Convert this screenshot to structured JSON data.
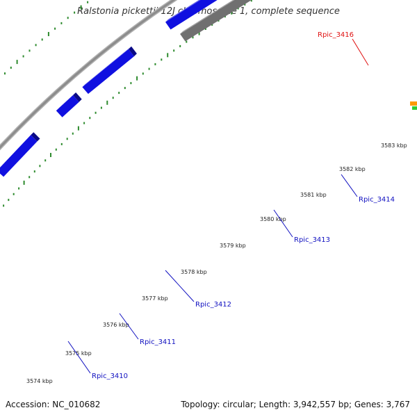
{
  "title": "Ralstonia pickettii 12J chromosome 1, complete sequence",
  "footer": {
    "accession": "Accession: NC_010682",
    "summary": "Topology: circular; Length: 3,942,557 bp; Genes: 3,767"
  },
  "colors": {
    "backbone": "#8c8c8c",
    "tick": "#2e8b2e",
    "gene_forward": "#1010e0",
    "gene_highlight": "#e01010",
    "gene_other": "#707070",
    "label_default": "#1010c0",
    "label_highlight": "#e01010",
    "edge_orange": "#ff9900",
    "edge_green": "#33cc33"
  },
  "ruler": {
    "unit": "kbp",
    "ticks": [
      "3574 kbp",
      "3575 kbp",
      "3576 kbp",
      "3577 kbp",
      "3578 kbp",
      "3579 kbp",
      "3580 kbp",
      "3581 kbp",
      "3582 kbp",
      "3583 kbp"
    ]
  },
  "genes": [
    {
      "name": "Rpic_3410",
      "strand": "forward",
      "color_key": "gene_forward",
      "labeled": true
    },
    {
      "name": "Rpic_3411",
      "strand": "forward",
      "color_key": "gene_forward",
      "labeled": true
    },
    {
      "name": "Rpic_3412",
      "strand": "forward",
      "color_key": "gene_forward",
      "labeled": true
    },
    {
      "name": "Rpic_3413",
      "strand": "reverse",
      "color_key": "gene_other",
      "labeled": true
    },
    {
      "name": "Rpic_3414",
      "strand": "forward",
      "color_key": "gene_forward",
      "labeled": true
    },
    {
      "name": "Rpic_3416",
      "strand": "forward",
      "color_key": "gene_highlight",
      "labeled": true
    }
  ]
}
